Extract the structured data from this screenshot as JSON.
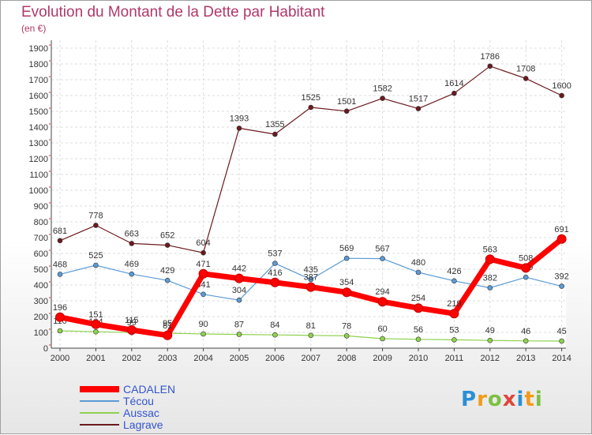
{
  "header": {
    "title": "Evolution du Montant de la Dette par Habitant",
    "subtitle": "(en €)"
  },
  "logo": {
    "text": "Proxiti"
  },
  "chart_data": {
    "type": "line",
    "title": "Evolution du Montant de la Dette par Habitant",
    "subtitle": "(en €)",
    "x": [
      "2000",
      "2001",
      "2002",
      "2003",
      "2004",
      "2005",
      "2006",
      "2007",
      "2008",
      "2009",
      "2010",
      "2011",
      "2012",
      "2013",
      "2014"
    ],
    "yticks": [
      0,
      100,
      200,
      300,
      400,
      500,
      600,
      700,
      800,
      900,
      1000,
      1100,
      1200,
      1300,
      1400,
      1500,
      1600,
      1700,
      1800,
      1900
    ],
    "ylim": [
      0,
      1900
    ],
    "grid": true,
    "legend_position": "bottom-left",
    "series": [
      {
        "name": "Lagrave",
        "color": "#6b1a1f",
        "values": [
          681,
          778,
          663,
          652,
          604,
          1393,
          1355,
          1525,
          1501,
          1582,
          1517,
          1614,
          1786,
          1708,
          1600
        ]
      },
      {
        "name": "Técou",
        "color": "#5b9bd5",
        "values": [
          468,
          525,
          469,
          429,
          341,
          304,
          537,
          435,
          569,
          567,
          480,
          426,
          382,
          449,
          392
        ]
      },
      {
        "name": "Aussac",
        "color": "#8fd14f",
        "values": [
          110,
          104,
          99,
          95,
          90,
          87,
          84,
          81,
          78,
          60,
          56,
          53,
          49,
          46,
          45
        ]
      },
      {
        "name": "CADALEN",
        "color": "#ff0000",
        "values": [
          196,
          151,
          115,
          81,
          471,
          442,
          416,
          387,
          354,
          294,
          254,
          219,
          563,
          508,
          691
        ]
      }
    ],
    "legend": [
      "CADALEN",
      "Técou",
      "Aussac",
      "Lagrave"
    ]
  }
}
